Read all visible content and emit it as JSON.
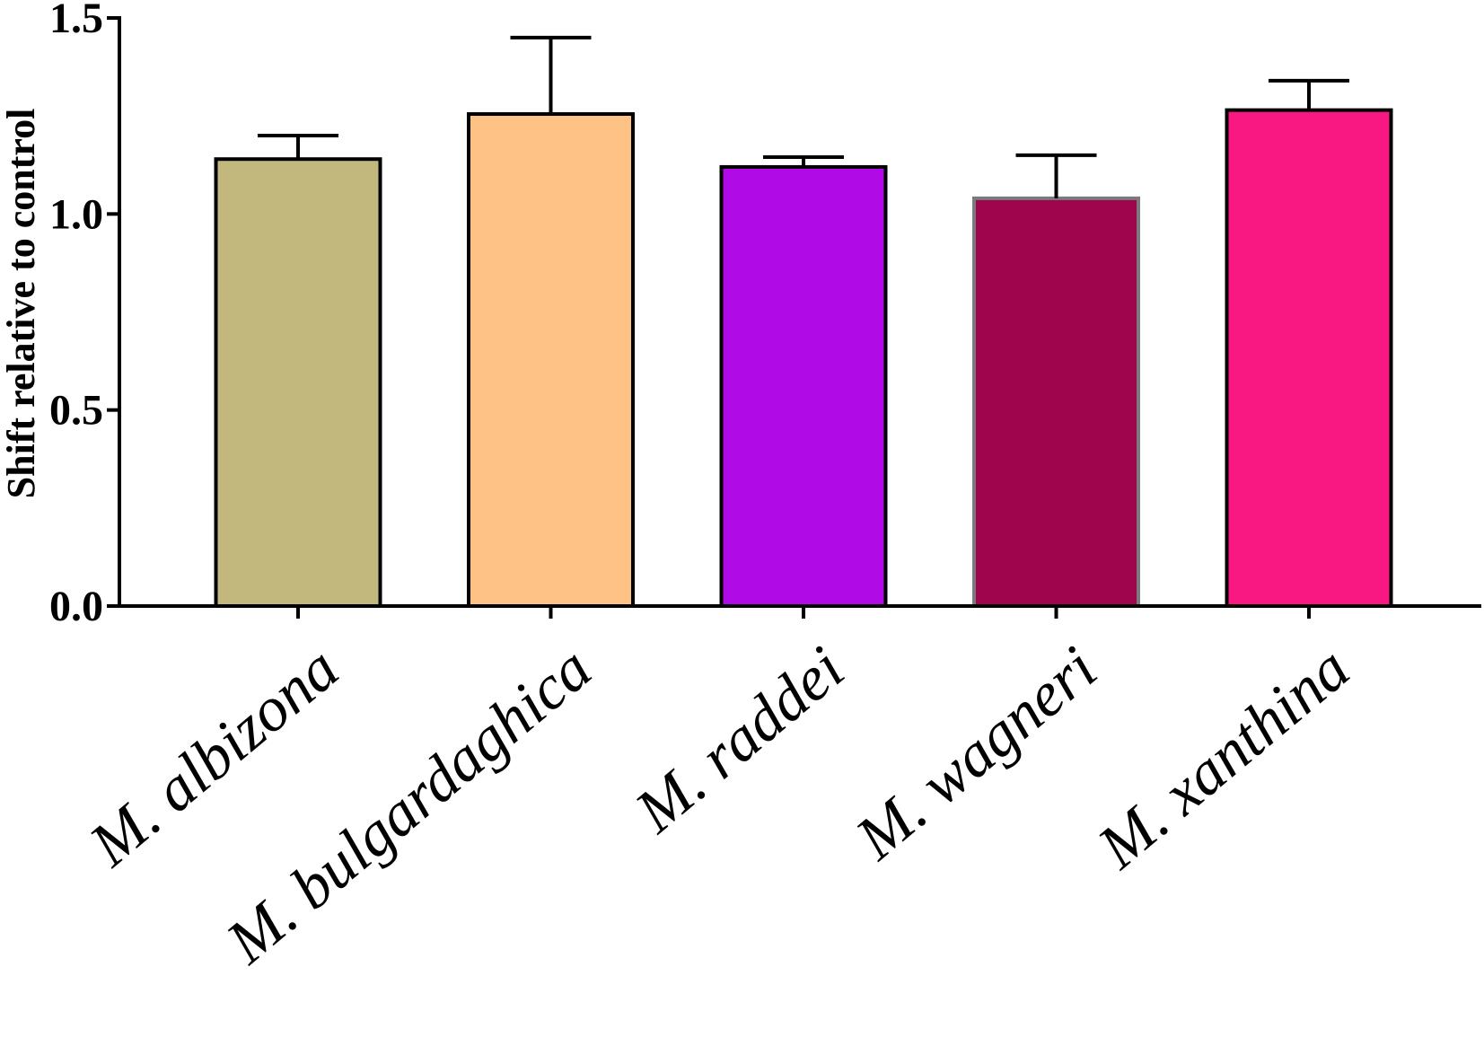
{
  "chart_data": {
    "type": "bar",
    "categories": [
      "M. albizona",
      "M. bulgardaghica",
      "M. raddei",
      "M. wagneri",
      "M. xanthina"
    ],
    "values": [
      1.14,
      1.255,
      1.12,
      1.04,
      1.265
    ],
    "errors": [
      0.06,
      0.195,
      0.025,
      0.11,
      0.075
    ],
    "colors": [
      "#c2b87e",
      "#fec285",
      "#b00ae6",
      "#9f054c",
      "#f81882"
    ],
    "bar_outline_colors": [
      "#000000",
      "#000000",
      "#000000",
      "#7a7a7a",
      "#000000"
    ],
    "title": "",
    "xlabel": "",
    "ylabel": "Shift relative to control",
    "ylim": [
      0,
      1.5
    ],
    "yticks": [
      "0.0",
      "0.5",
      "1.0",
      "1.5"
    ],
    "grid": false,
    "legend": false
  }
}
